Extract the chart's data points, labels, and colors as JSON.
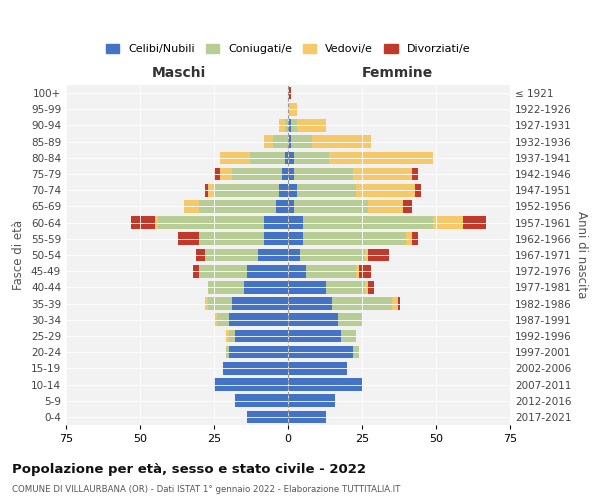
{
  "age_groups": [
    "0-4",
    "5-9",
    "10-14",
    "15-19",
    "20-24",
    "25-29",
    "30-34",
    "35-39",
    "40-44",
    "45-49",
    "50-54",
    "55-59",
    "60-64",
    "65-69",
    "70-74",
    "75-79",
    "80-84",
    "85-89",
    "90-94",
    "95-99",
    "100+"
  ],
  "birth_years": [
    "2017-2021",
    "2012-2016",
    "2007-2011",
    "2002-2006",
    "1997-2001",
    "1992-1996",
    "1987-1991",
    "1982-1986",
    "1977-1981",
    "1972-1976",
    "1967-1971",
    "1962-1966",
    "1957-1961",
    "1952-1956",
    "1947-1951",
    "1942-1946",
    "1937-1941",
    "1932-1936",
    "1927-1931",
    "1922-1926",
    "≤ 1921"
  ],
  "colors": {
    "celibe": "#4472c4",
    "coniugato": "#b8cc96",
    "vedovo": "#f5c96a",
    "divorziato": "#c0392b"
  },
  "maschi": {
    "celibe": [
      14,
      18,
      25,
      22,
      20,
      18,
      20,
      19,
      15,
      14,
      10,
      8,
      8,
      4,
      3,
      2,
      1,
      0,
      0,
      0,
      0
    ],
    "coniugato": [
      0,
      0,
      0,
      0,
      1,
      2,
      4,
      8,
      12,
      16,
      18,
      22,
      36,
      26,
      22,
      17,
      12,
      5,
      1,
      0,
      0
    ],
    "vedovo": [
      0,
      0,
      0,
      0,
      0,
      1,
      1,
      1,
      0,
      0,
      0,
      0,
      1,
      5,
      2,
      4,
      10,
      3,
      2,
      0,
      0
    ],
    "divorziato": [
      0,
      0,
      0,
      0,
      0,
      0,
      0,
      0,
      0,
      2,
      3,
      7,
      8,
      0,
      1,
      2,
      0,
      0,
      0,
      0,
      0
    ]
  },
  "femmine": {
    "nubile": [
      13,
      16,
      25,
      20,
      22,
      18,
      17,
      15,
      13,
      6,
      4,
      5,
      5,
      2,
      3,
      2,
      2,
      1,
      1,
      0,
      0
    ],
    "coniugata": [
      0,
      0,
      0,
      0,
      2,
      5,
      8,
      20,
      13,
      17,
      22,
      35,
      44,
      25,
      20,
      20,
      12,
      7,
      2,
      0,
      0
    ],
    "vedova": [
      0,
      0,
      0,
      0,
      0,
      0,
      0,
      2,
      1,
      1,
      1,
      2,
      10,
      12,
      20,
      20,
      35,
      20,
      10,
      3,
      0
    ],
    "divorziata": [
      0,
      0,
      0,
      0,
      0,
      0,
      0,
      1,
      2,
      4,
      7,
      2,
      8,
      3,
      2,
      2,
      0,
      0,
      0,
      0,
      1
    ]
  },
  "xlim": 75,
  "title": "Popolazione per età, sesso e stato civile - 2022",
  "subtitle": "COMUNE DI VILLAURBANA (OR) - Dati ISTAT 1° gennaio 2022 - Elaborazione TUTTITALIA.IT",
  "ylabel_left": "Fasce di età",
  "ylabel_right": "Anni di nascita",
  "xlabel_left": "Maschi",
  "xlabel_right": "Femmine",
  "background": "#f2f2f2"
}
